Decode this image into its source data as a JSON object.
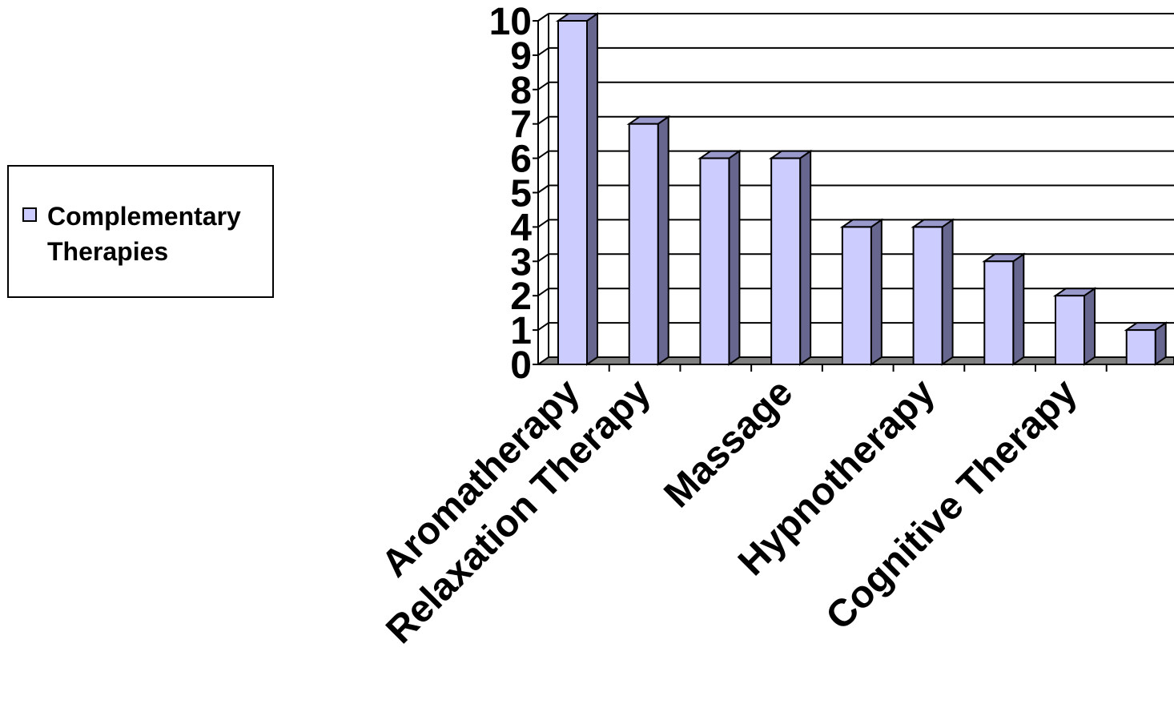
{
  "chart_data": {
    "type": "bar",
    "categories": [
      "Aromatherapy",
      "Relaxation Therapy",
      "",
      "Massage",
      "",
      "Hypnotherapy",
      "",
      "Cognitive Therapy",
      ""
    ],
    "series": [
      {
        "name": "Complementary Therapies",
        "values": [
          10,
          7,
          6,
          6,
          4,
          4,
          3,
          2,
          1
        ]
      }
    ],
    "ylim": [
      0,
      10
    ],
    "yticks": [
      0,
      1,
      2,
      3,
      4,
      5,
      6,
      7,
      8,
      9,
      10
    ],
    "xlabel": "",
    "ylabel": "",
    "grid": true,
    "legend_position": "left",
    "colors": {
      "bar_front": "#ccccff",
      "bar_side": "#66668f",
      "bar_top": "#9999cc",
      "floor": "#808080"
    }
  }
}
